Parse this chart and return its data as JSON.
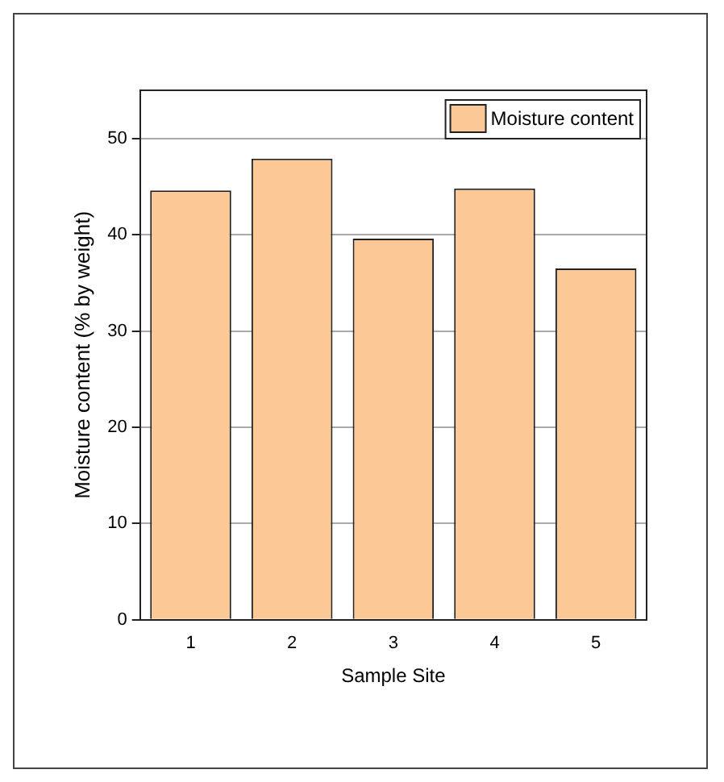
{
  "chart_data": {
    "type": "bar",
    "xlabel": "Sample Site",
    "ylabel": "Moisture content (% by weight)",
    "categories": [
      "1",
      "2",
      "3",
      "4",
      "5"
    ],
    "series": [
      {
        "name": "Moisture content",
        "color": "#fcc896",
        "values": [
          44.6,
          47.9,
          39.6,
          44.8,
          36.5
        ]
      }
    ],
    "ylim": [
      0,
      55
    ],
    "yticks": [
      0,
      10,
      20,
      30,
      40,
      50
    ],
    "grid": "y",
    "legend": "top right"
  }
}
